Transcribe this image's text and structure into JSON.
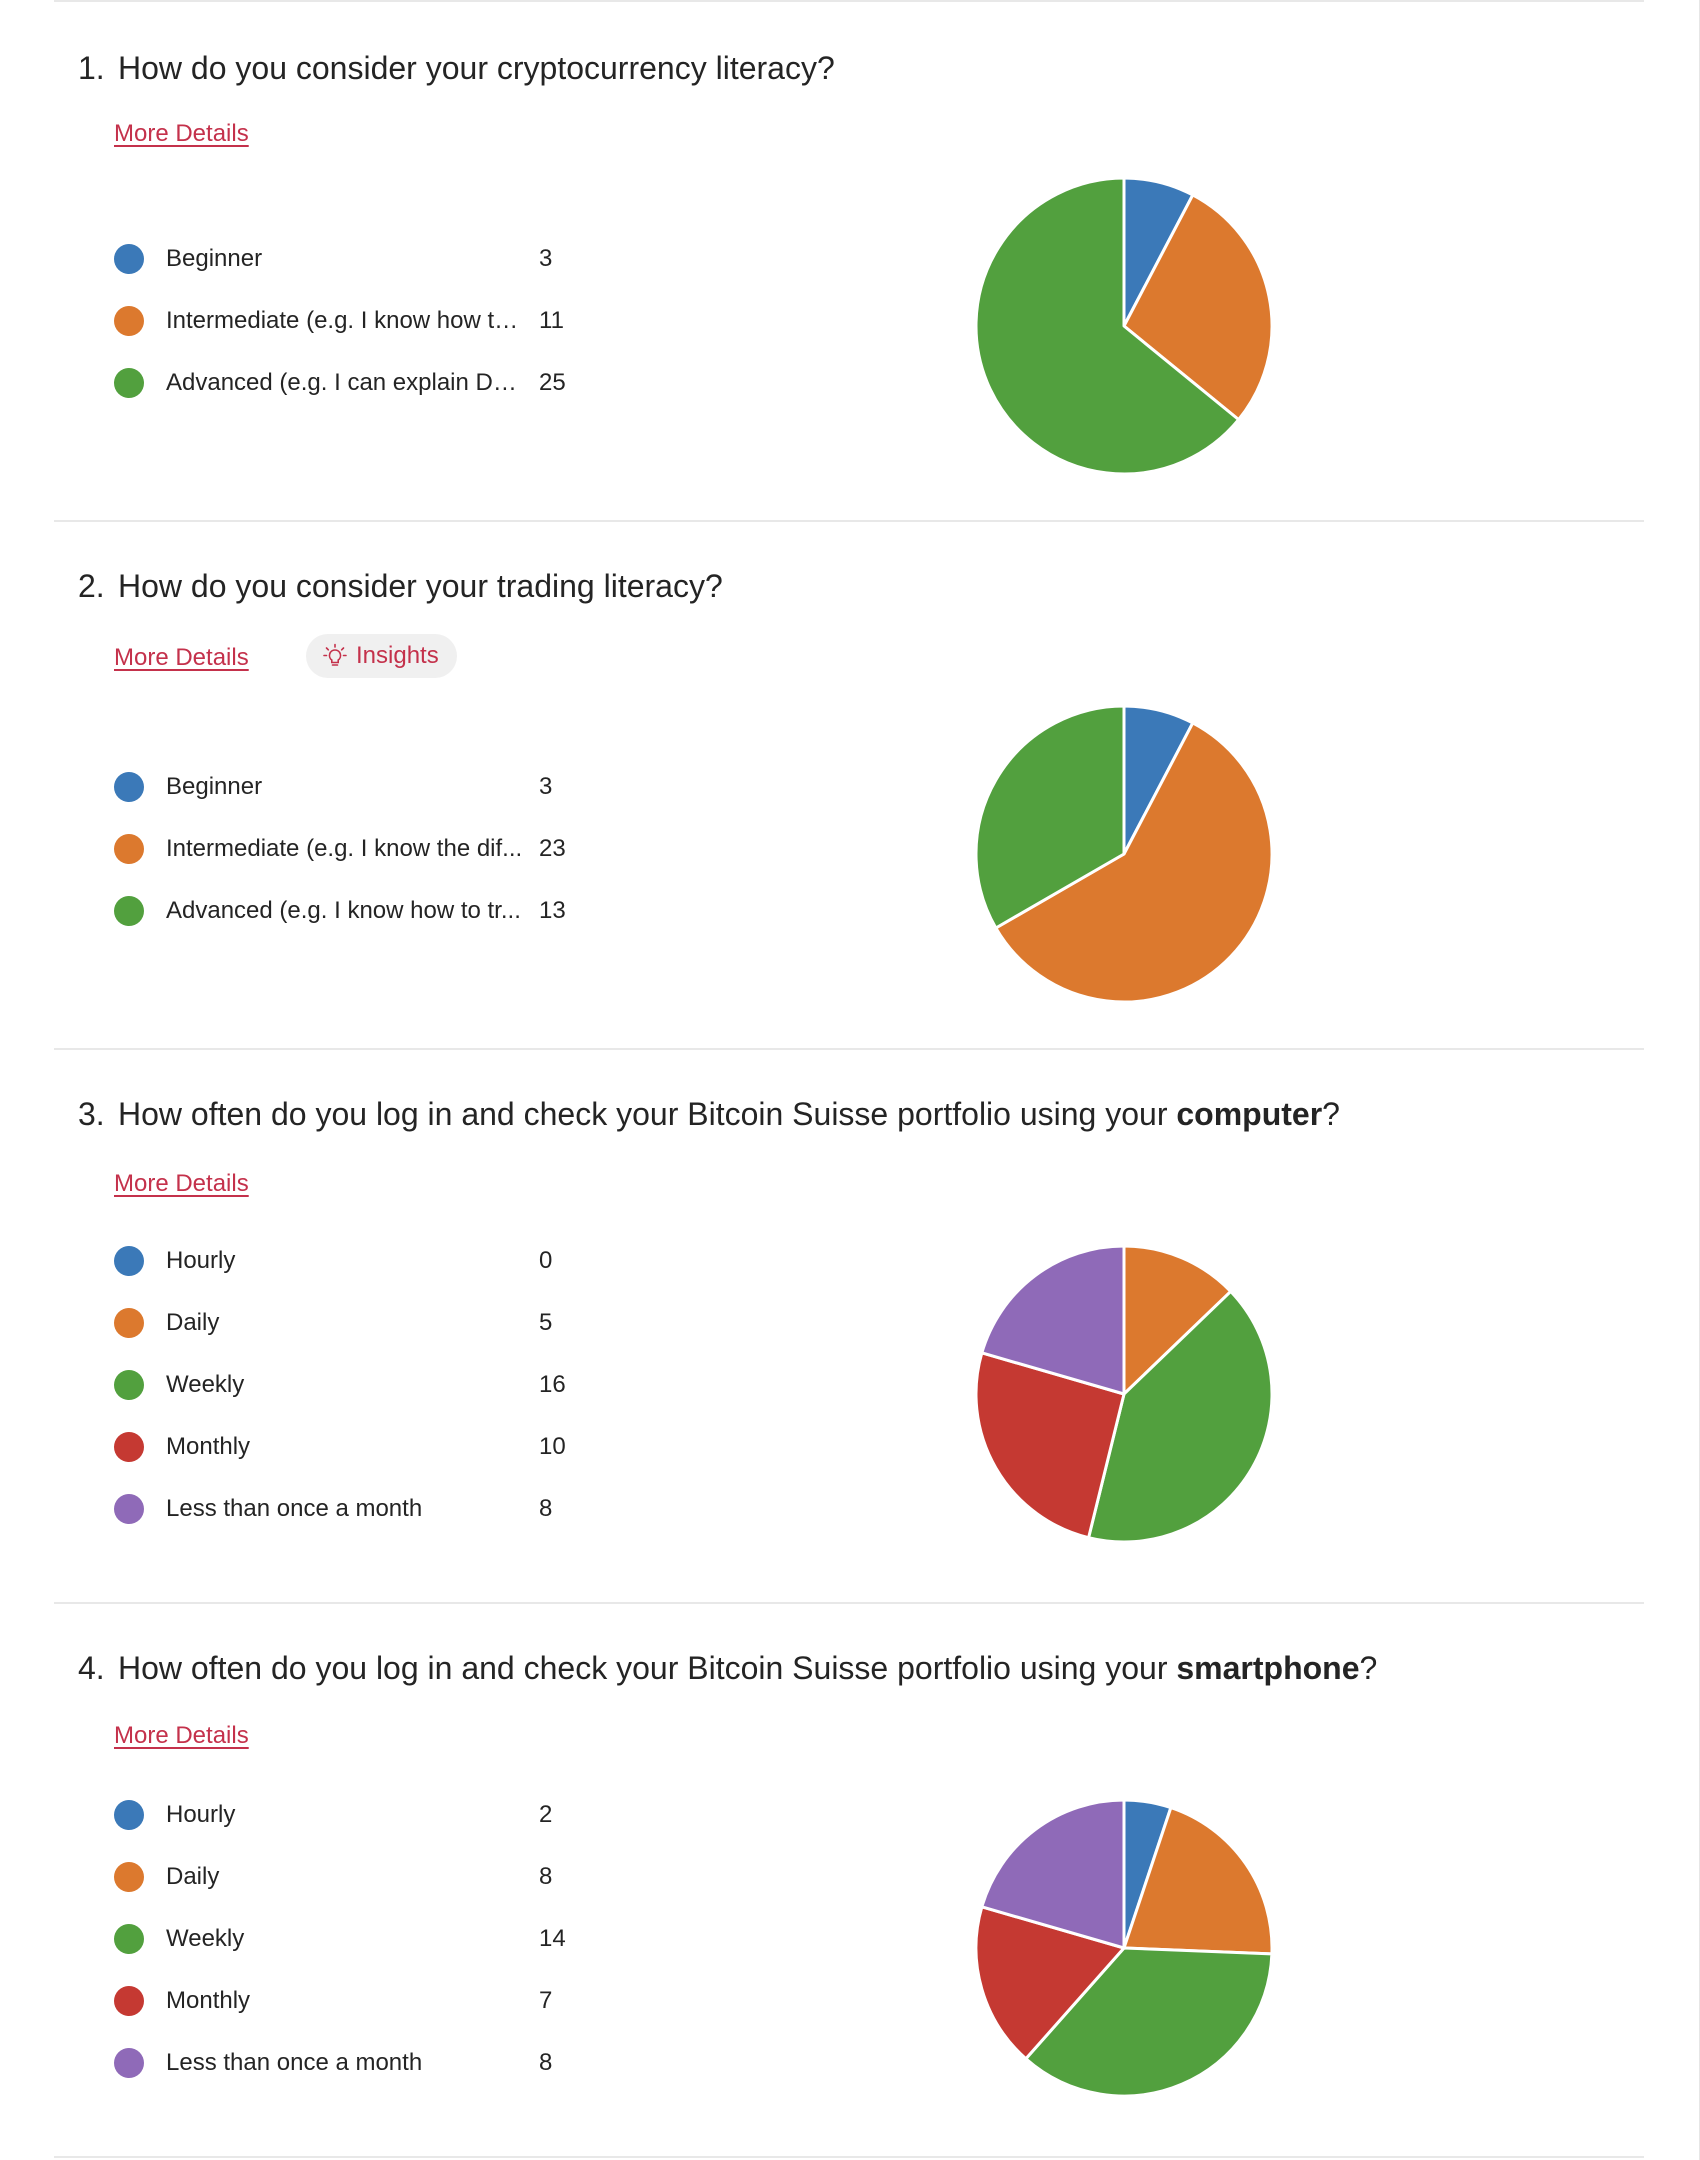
{
  "more_details_label": "More Details",
  "insights_label": "Insights",
  "colors": {
    "blue": "#3b79b8",
    "orange": "#dc792e",
    "green": "#52a03e",
    "red": "#c53932",
    "purple": "#8f6ab8",
    "link": "#c4314b"
  },
  "questions": [
    {
      "number": "1.",
      "title_prefix": "How do you consider your cryptocurrency literacy?",
      "title_bold": "",
      "title_suffix": "",
      "has_insights": false,
      "options": [
        {
          "label": "Beginner",
          "count": "3",
          "color": "#3b79b8"
        },
        {
          "label": "Intermediate (e.g. I know how to...",
          "count": "11",
          "color": "#dc792e"
        },
        {
          "label": "Advanced (e.g. I can explain DeFi)",
          "count": "25",
          "color": "#52a03e"
        }
      ]
    },
    {
      "number": "2.",
      "title_prefix": "How do you consider your trading literacy?",
      "title_bold": "",
      "title_suffix": "",
      "has_insights": true,
      "options": [
        {
          "label": "Beginner",
          "count": "3",
          "color": "#3b79b8"
        },
        {
          "label": "Intermediate (e.g. I know the dif...",
          "count": "23",
          "color": "#dc792e"
        },
        {
          "label": "Advanced (e.g. I know how to tr...",
          "count": "13",
          "color": "#52a03e"
        }
      ]
    },
    {
      "number": "3.",
      "title_prefix": "How often do you log in and check your Bitcoin Suisse portfolio using your ",
      "title_bold": "computer",
      "title_suffix": "?",
      "has_insights": false,
      "options": [
        {
          "label": "Hourly",
          "count": "0",
          "color": "#3b79b8"
        },
        {
          "label": "Daily",
          "count": "5",
          "color": "#dc792e"
        },
        {
          "label": "Weekly",
          "count": "16",
          "color": "#52a03e"
        },
        {
          "label": "Monthly",
          "count": "10",
          "color": "#c53932"
        },
        {
          "label": "Less than once a month",
          "count": "8",
          "color": "#8f6ab8"
        }
      ]
    },
    {
      "number": "4.",
      "title_prefix": "How often do you log in and check your Bitcoin Suisse portfolio using your ",
      "title_bold": "smartphone",
      "title_suffix": "?",
      "has_insights": false,
      "options": [
        {
          "label": "Hourly",
          "count": "2",
          "color": "#3b79b8"
        },
        {
          "label": "Daily",
          "count": "8",
          "color": "#dc792e"
        },
        {
          "label": "Weekly",
          "count": "14",
          "color": "#52a03e"
        },
        {
          "label": "Monthly",
          "count": "7",
          "color": "#c53932"
        },
        {
          "label": "Less than once a month",
          "count": "8",
          "color": "#8f6ab8"
        }
      ]
    }
  ],
  "chart_data": [
    {
      "type": "pie",
      "categories": [
        "Beginner",
        "Intermediate (e.g. I know how to...",
        "Advanced (e.g. I can explain DeFi)"
      ],
      "values": [
        3,
        11,
        25
      ]
    },
    {
      "type": "pie",
      "categories": [
        "Beginner",
        "Intermediate (e.g. I know the dif...",
        "Advanced (e.g. I know how to tr..."
      ],
      "values": [
        3,
        23,
        13
      ]
    },
    {
      "type": "pie",
      "categories": [
        "Hourly",
        "Daily",
        "Weekly",
        "Monthly",
        "Less than once a month"
      ],
      "values": [
        0,
        5,
        16,
        10,
        8
      ]
    },
    {
      "type": "pie",
      "categories": [
        "Hourly",
        "Daily",
        "Weekly",
        "Monthly",
        "Less than once a month"
      ],
      "values": [
        2,
        8,
        14,
        7,
        8
      ]
    }
  ]
}
